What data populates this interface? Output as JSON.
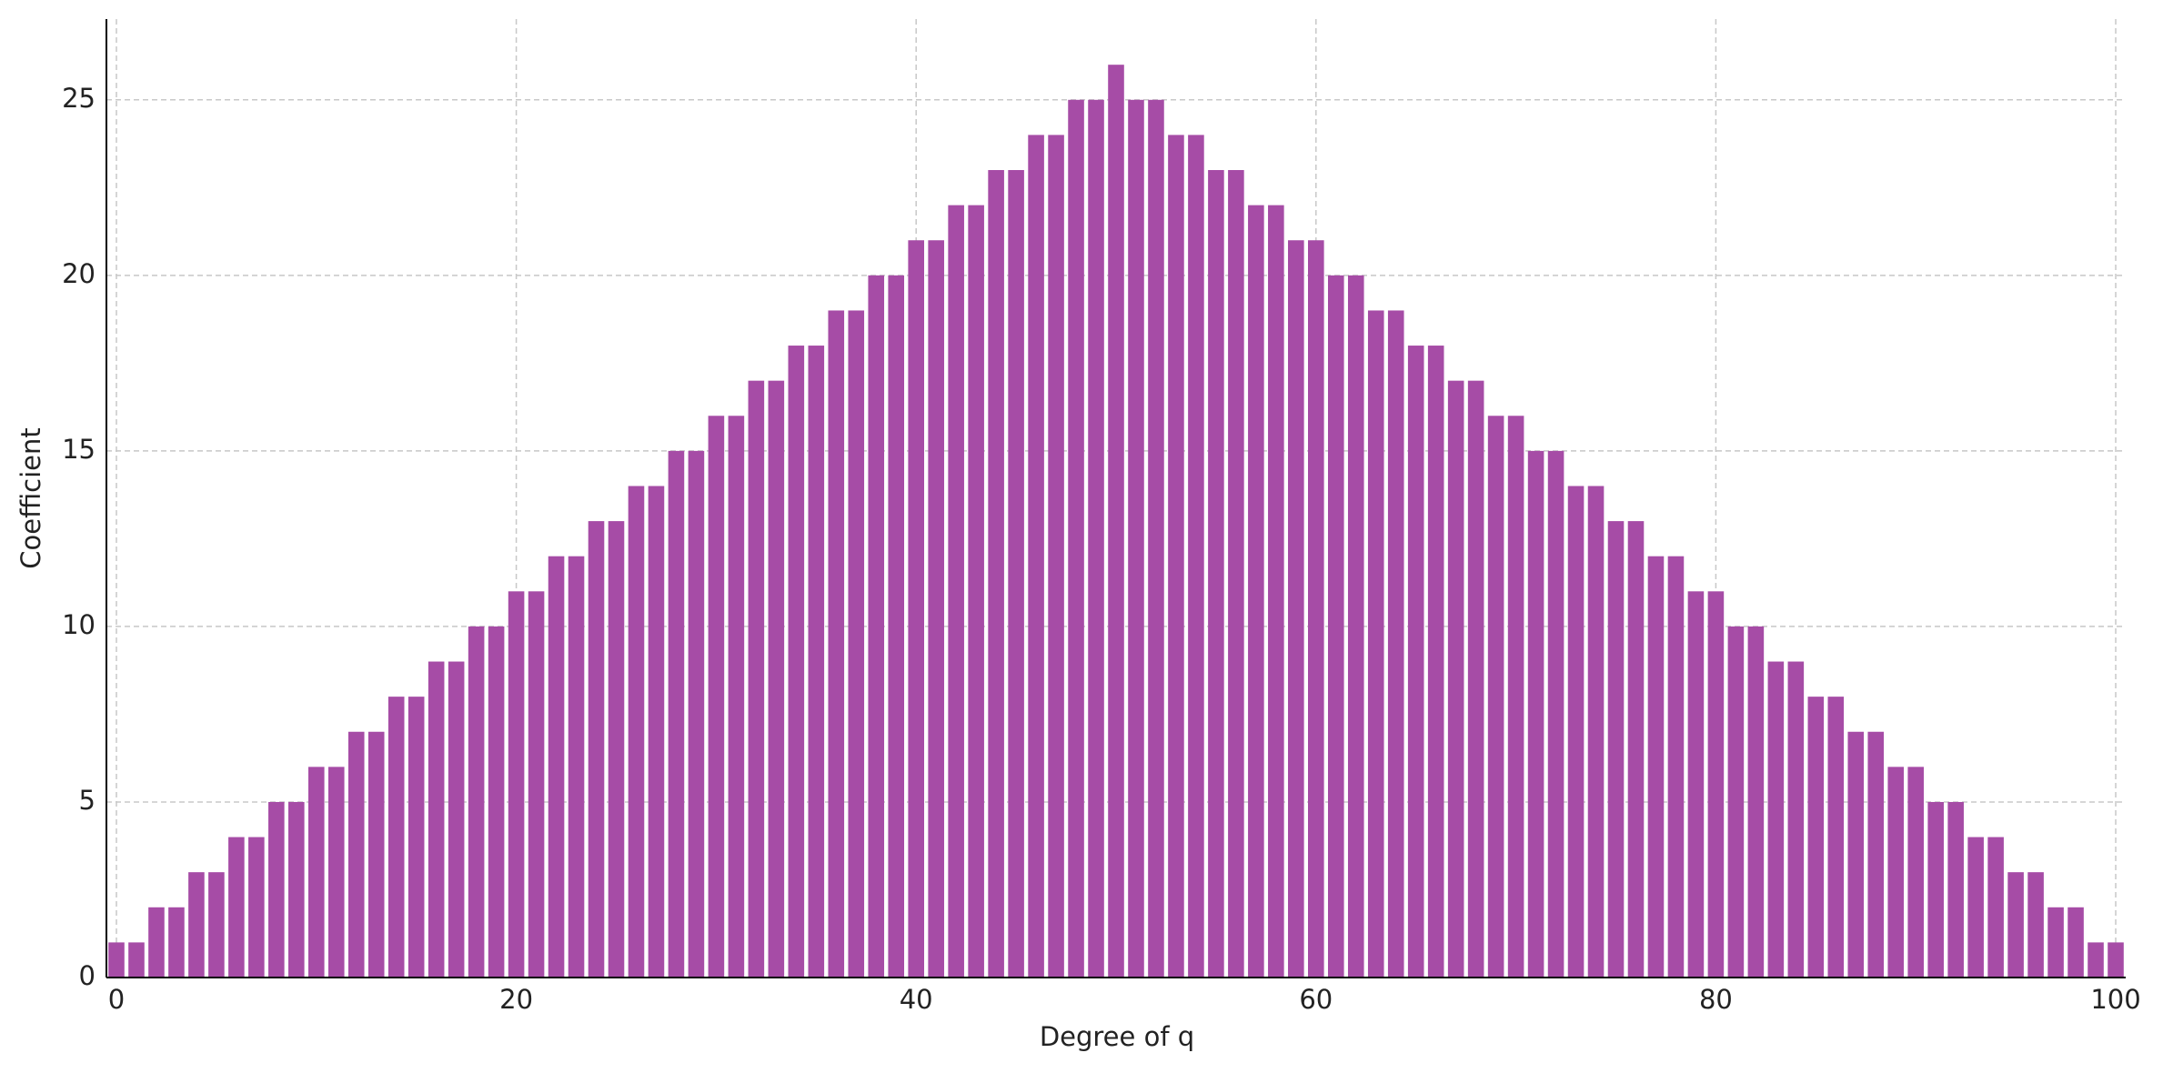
{
  "chart_data": {
    "type": "bar",
    "x_label": "Degree of q",
    "y_label": "Coefficient",
    "x": [
      0,
      1,
      2,
      3,
      4,
      5,
      6,
      7,
      8,
      9,
      10,
      11,
      12,
      13,
      14,
      15,
      16,
      17,
      18,
      19,
      20,
      21,
      22,
      23,
      24,
      25,
      26,
      27,
      28,
      29,
      30,
      31,
      32,
      33,
      34,
      35,
      36,
      37,
      38,
      39,
      40,
      41,
      42,
      43,
      44,
      45,
      46,
      47,
      48,
      49,
      50,
      51,
      52,
      53,
      54,
      55,
      56,
      57,
      58,
      59,
      60,
      61,
      62,
      63,
      64,
      65,
      66,
      67,
      68,
      69,
      70,
      71,
      72,
      73,
      74,
      75,
      76,
      77,
      78,
      79,
      80,
      81,
      82,
      83,
      84,
      85,
      86,
      87,
      88,
      89,
      90,
      91,
      92,
      93,
      94,
      95,
      96,
      97,
      98,
      99,
      100
    ],
    "values": [
      1,
      1,
      2,
      2,
      3,
      3,
      4,
      4,
      5,
      5,
      6,
      6,
      7,
      7,
      8,
      8,
      9,
      9,
      10,
      10,
      11,
      11,
      12,
      12,
      13,
      13,
      14,
      14,
      15,
      15,
      16,
      16,
      17,
      17,
      18,
      18,
      19,
      19,
      20,
      20,
      21,
      21,
      22,
      22,
      23,
      23,
      24,
      24,
      25,
      25,
      26,
      25,
      25,
      24,
      24,
      23,
      23,
      22,
      22,
      21,
      21,
      20,
      20,
      19,
      19,
      18,
      18,
      17,
      17,
      16,
      16,
      15,
      15,
      14,
      14,
      13,
      13,
      12,
      12,
      11,
      11,
      10,
      10,
      9,
      9,
      8,
      8,
      7,
      7,
      6,
      6,
      5,
      5,
      4,
      4,
      3,
      3,
      2,
      2,
      1,
      1
    ],
    "color": "#a64ca6",
    "xlim": [
      -0.5,
      100.5
    ],
    "ylim": [
      0,
      27.3
    ],
    "xticks": [
      0,
      20,
      40,
      60,
      80,
      100
    ],
    "yticks": [
      0,
      5,
      10,
      15,
      20,
      25
    ],
    "grid": true
  }
}
